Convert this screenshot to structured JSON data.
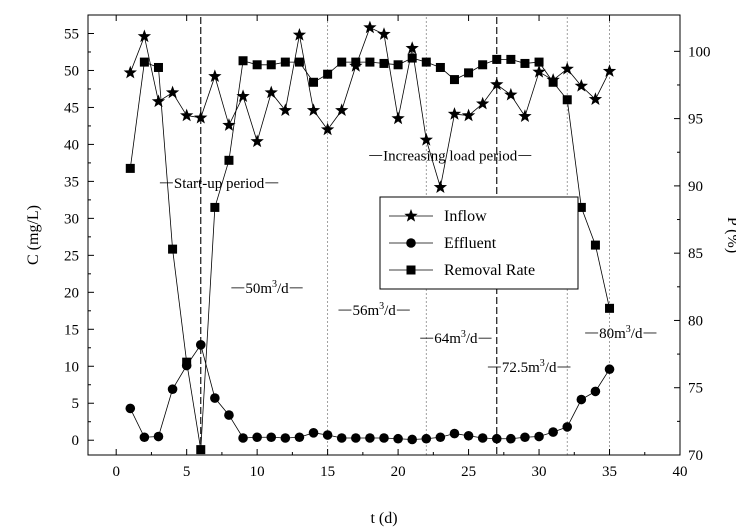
{
  "chart_data": {
    "type": "line",
    "x": [
      1,
      2,
      3,
      4,
      5,
      6,
      7,
      8,
      9,
      10,
      11,
      12,
      13,
      14,
      15,
      16,
      17,
      18,
      19,
      20,
      21,
      22,
      23,
      24,
      25,
      26,
      27,
      28,
      29,
      30,
      31,
      32,
      33,
      34,
      35
    ],
    "series": [
      {
        "name": "Inflow",
        "axis": "left",
        "marker": "star",
        "values": [
          49.7,
          54.6,
          45.8,
          47.0,
          43.9,
          43.6,
          49.2,
          42.6,
          46.5,
          40.4,
          47.0,
          44.6,
          54.8,
          44.6,
          42.0,
          44.6,
          50.6,
          55.8,
          54.9,
          43.5,
          53.0,
          40.6,
          34.2,
          44.1,
          43.9,
          45.5,
          48.1,
          46.7,
          43.8,
          49.8,
          48.7,
          50.2,
          47.9,
          46.1,
          49.9
        ]
      },
      {
        "name": "Effluent",
        "axis": "left",
        "marker": "circle",
        "values": [
          4.3,
          0.4,
          0.5,
          6.9,
          10.1,
          12.9,
          5.7,
          3.4,
          0.3,
          0.4,
          0.4,
          0.3,
          0.4,
          1.0,
          0.7,
          0.3,
          0.3,
          0.3,
          0.3,
          0.2,
          0.1,
          0.2,
          0.4,
          0.9,
          0.6,
          0.3,
          0.2,
          0.2,
          0.4,
          0.5,
          1.1,
          1.8,
          5.5,
          6.6,
          9.6
        ]
      },
      {
        "name": "Removal Rate",
        "axis": "right",
        "marker": "square",
        "values": [
          91.3,
          99.2,
          98.8,
          85.3,
          76.9,
          70.4,
          88.4,
          91.9,
          99.3,
          99.0,
          99.0,
          99.2,
          99.2,
          97.7,
          98.3,
          99.2,
          99.2,
          99.2,
          99.1,
          99.0,
          99.5,
          99.2,
          98.8,
          97.9,
          98.4,
          99.0,
          99.4,
          99.4,
          99.1,
          99.2,
          97.7,
          96.4,
          88.4,
          85.6,
          80.9
        ]
      }
    ],
    "xlim": [
      -2,
      40
    ],
    "xticks": [
      0,
      5,
      10,
      15,
      20,
      25,
      30,
      35,
      40
    ],
    "ylim_left": [
      -2,
      57.5
    ],
    "yticks_left": [
      0,
      5,
      10,
      15,
      20,
      25,
      30,
      35,
      40,
      45,
      50,
      55
    ],
    "ylim_right": [
      70,
      102.7
    ],
    "yticks_right": [
      70,
      75,
      80,
      85,
      90,
      95,
      100
    ],
    "xlabel": "t (d)",
    "ylabel_left": "C (mg/L)",
    "ylabel_right": "P (%)",
    "grid": false,
    "legend_position": "center-right",
    "period_dividers": [
      6,
      15,
      22,
      27,
      32,
      35
    ],
    "period_annotations": [
      {
        "text": "Start-up period",
        "x": 7.3,
        "y": 34.8
      },
      {
        "text": "Increasing load period",
        "x": 23.7,
        "y": 38.5
      },
      {
        "text": "50m³/d",
        "x": 10.7,
        "y": 20.6
      },
      {
        "text": "56m³/d",
        "x": 18.3,
        "y": 17.6
      },
      {
        "text": "64m³/d",
        "x": 24.1,
        "y": 13.8
      },
      {
        "text": "72.5m³/d",
        "x": 29.3,
        "y": 9.9
      },
      {
        "text": "80m³/d",
        "x": 35.8,
        "y": 14.5
      }
    ]
  }
}
